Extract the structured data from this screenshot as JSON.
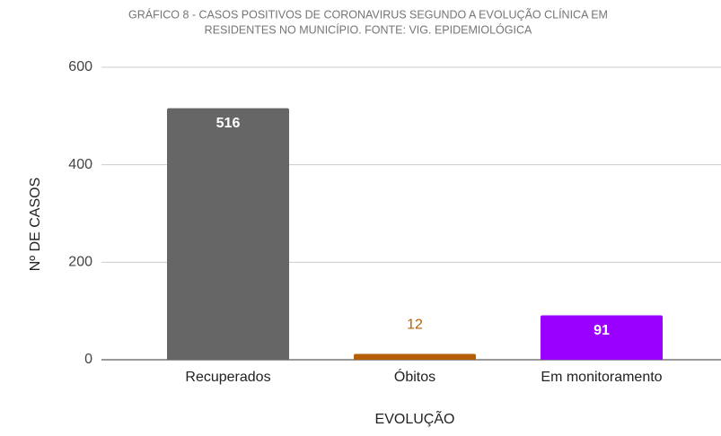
{
  "chart_data": {
    "type": "bar",
    "title": [
      "GRÁFICO 8 -  CASOS POSITIVOS DE CORONAVIRUS SEGUNDO A EVOLUÇÃO CLÍNICA EM",
      "RESIDENTES NO MUNICÍPIO. FONTE: VIG. EPIDEMIOLÓGICA"
    ],
    "x_label": "EVOLUÇÃO",
    "y_label": "Nº DE CASOS",
    "categories": [
      "Recuperados",
      "Óbitos",
      "Em monitoramento"
    ],
    "values": [
      516,
      12,
      91
    ],
    "colors": [
      "#666666",
      "#b45f06",
      "#9900ff"
    ],
    "ylim": [
      0,
      600
    ],
    "yticks": [
      0,
      200,
      400,
      600
    ],
    "grid": true
  }
}
